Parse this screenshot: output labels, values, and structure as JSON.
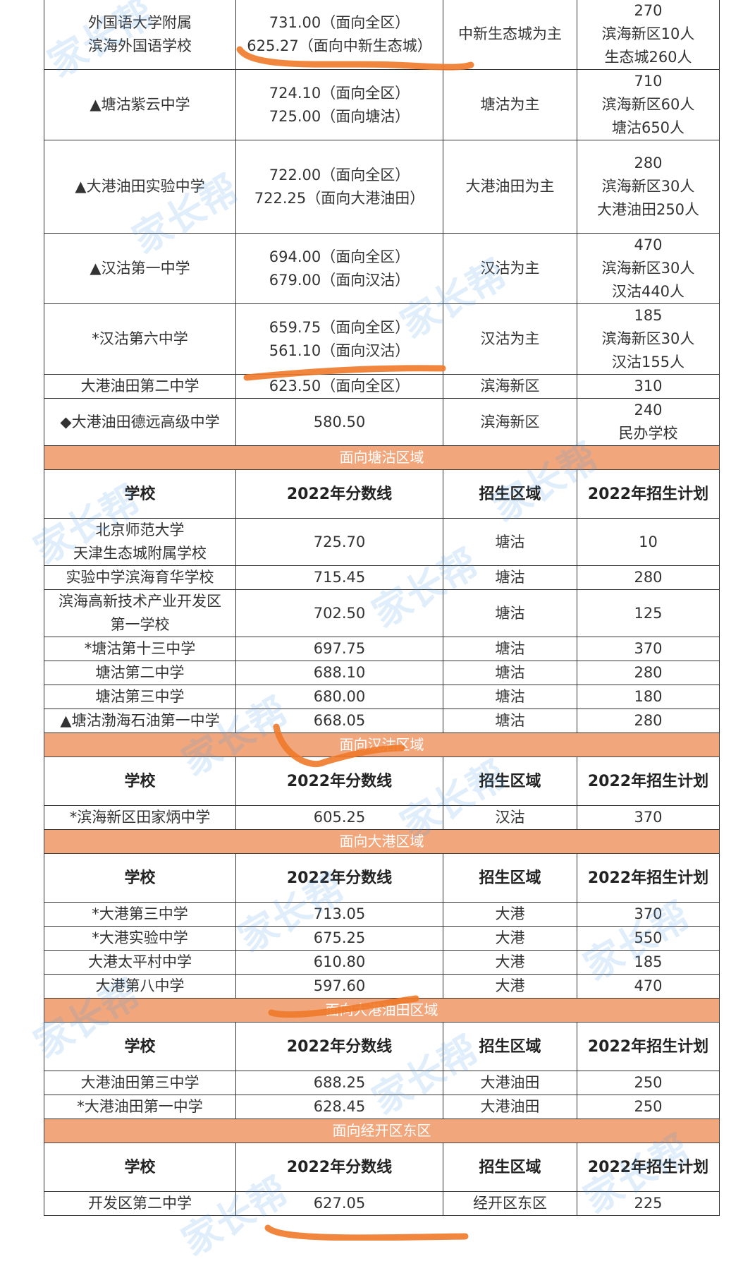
{
  "columns": [
    "学校",
    "2022年分数线",
    "招生区域",
    "2022年招生计划"
  ],
  "accent_color": "#f2a67c",
  "watermark": "家长帮",
  "sections": [
    {
      "title": "",
      "show_header": false,
      "rows": [
        {
          "cells": [
            "外国语大学附属\n滨海外国语学校",
            "731.00（面向全区）\n625.27（面向中新生态城）",
            "中新生态城为主",
            "270\n滨海新区10人\n生态城260人"
          ]
        },
        {
          "cells": [
            "▲塘沽紫云中学",
            "724.10（面向全区）\n725.00（面向塘沽）",
            "塘沽为主",
            "710\n滨海新区60人\n塘沽650人"
          ]
        },
        {
          "cells": [
            "▲大港油田实验中学",
            "722.00（面向全区）\n722.25（面向大港油田）",
            "大港油田为主",
            "280\n滨海新区30人\n大港油田250人"
          ]
        },
        {
          "cells": [
            "▲汉沽第一中学",
            "694.00（面向全区）\n679.00（面向汉沽）",
            "汉沽为主",
            "470\n滨海新区30人\n汉沽440人"
          ]
        },
        {
          "cells": [
            "*汉沽第六中学",
            "659.75（面向全区）\n561.10（面向汉沽）",
            "汉沽为主",
            "185\n滨海新区30人\n汉沽155人"
          ]
        },
        {
          "cells": [
            "大港油田第二中学",
            "623.50（面向全区）",
            "滨海新区",
            "310"
          ]
        },
        {
          "cells": [
            "◆大港油田德远高级中学",
            "580.50",
            "滨海新区",
            "240\n民办学校"
          ]
        }
      ]
    },
    {
      "title": "面向塘沽区域",
      "show_header": true,
      "rows": [
        {
          "cells": [
            "北京师范大学\n天津生态城附属学校",
            "725.70",
            "塘沽",
            "10"
          ]
        },
        {
          "cells": [
            "实验中学滨海育华学校",
            "715.45",
            "塘沽",
            "280"
          ]
        },
        {
          "cells": [
            "滨海高新技术产业开发区\n第一学校",
            "702.50",
            "塘沽",
            "125"
          ]
        },
        {
          "cells": [
            "*塘沽第十三中学",
            "697.75",
            "塘沽",
            "370"
          ]
        },
        {
          "cells": [
            "塘沽第二中学",
            "688.10",
            "塘沽",
            "280"
          ]
        },
        {
          "cells": [
            "塘沽第三中学",
            "680.00",
            "塘沽",
            "180"
          ]
        },
        {
          "cells": [
            "▲塘沽渤海石油第一中学",
            "668.05",
            "塘沽",
            "280"
          ]
        }
      ]
    },
    {
      "title": "面向汉沽区域",
      "show_header": true,
      "rows": [
        {
          "cells": [
            "*滨海新区田家炳中学",
            "605.25",
            "汉沽",
            "370"
          ]
        }
      ]
    },
    {
      "title": "面向大港区域",
      "show_header": true,
      "rows": [
        {
          "cells": [
            "*大港第三中学",
            "713.05",
            "大港",
            "370"
          ]
        },
        {
          "cells": [
            "*大港实验中学",
            "675.25",
            "大港",
            "550"
          ]
        },
        {
          "cells": [
            "大港太平村中学",
            "610.80",
            "大港",
            "185"
          ]
        },
        {
          "cells": [
            "大港第八中学",
            "597.60",
            "大港",
            "470"
          ]
        }
      ]
    },
    {
      "title": "面向大港油田区域",
      "show_header": true,
      "rows": [
        {
          "cells": [
            "大港油田第三中学",
            "688.25",
            "大港油田",
            "250"
          ]
        },
        {
          "cells": [
            "*大港油田第一中学",
            "628.45",
            "大港油田",
            "250"
          ]
        }
      ]
    },
    {
      "title": "面向经开区东区",
      "show_header": true,
      "rows": [
        {
          "cells": [
            "开发区第二中学",
            "627.05",
            "经开区东区",
            "225"
          ]
        }
      ]
    }
  ]
}
